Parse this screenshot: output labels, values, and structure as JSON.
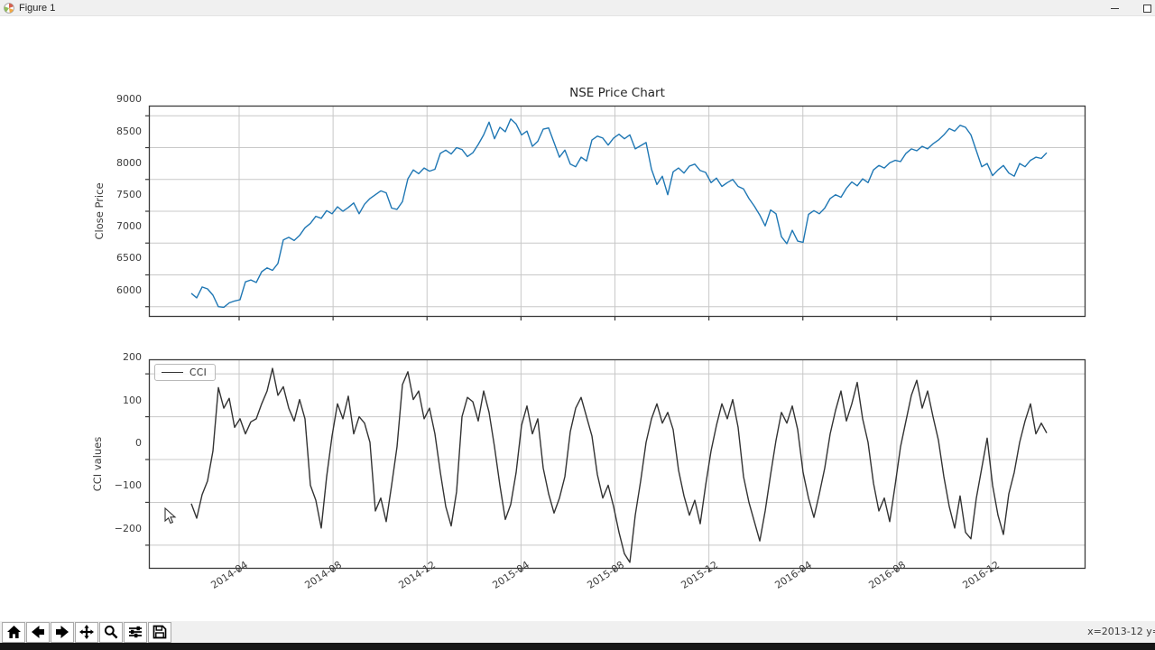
{
  "window": {
    "title": "Figure 1",
    "minimize_label": "Minimize",
    "maximize_label": "Maximize"
  },
  "toolbar": {
    "buttons": [
      {
        "name": "home",
        "tooltip": "Home"
      },
      {
        "name": "back",
        "tooltip": "Back"
      },
      {
        "name": "forward",
        "tooltip": "Forward"
      },
      {
        "name": "pan",
        "tooltip": "Pan"
      },
      {
        "name": "zoom",
        "tooltip": "Zoom"
      },
      {
        "name": "configure-subplots",
        "tooltip": "Configure subplots"
      },
      {
        "name": "save",
        "tooltip": "Save"
      }
    ],
    "status": "x=2013-12 y="
  },
  "chart_data": [
    {
      "type": "line",
      "title": "NSE Price Chart",
      "xlabel": "",
      "ylabel": "Close Price",
      "x_start": "2013-12",
      "x_end": "2017-01",
      "x_step": "weekly-approx",
      "x_tick_labels": [
        "2014-04",
        "2014-08",
        "2014-12",
        "2015-04",
        "2015-08",
        "2015-12",
        "2016-04",
        "2016-08",
        "2016-12"
      ],
      "y_ticks": [
        6000,
        6500,
        7000,
        7500,
        8000,
        8500,
        9000
      ],
      "y_tick_labels": [
        "6000",
        "6500",
        "7000",
        "7500",
        "8000",
        "8500",
        "9000"
      ],
      "ylim": [
        5840,
        9160
      ],
      "grid": true,
      "legend": null,
      "series": [
        {
          "name": "Close",
          "color": "#1f77b4",
          "values": [
            6210,
            6140,
            6310,
            6280,
            6180,
            6000,
            5990,
            6060,
            6090,
            6110,
            6390,
            6420,
            6380,
            6550,
            6610,
            6570,
            6680,
            7050,
            7090,
            7040,
            7120,
            7240,
            7310,
            7420,
            7390,
            7510,
            7460,
            7570,
            7500,
            7560,
            7630,
            7460,
            7610,
            7700,
            7760,
            7820,
            7790,
            7550,
            7530,
            7650,
            8010,
            8150,
            8090,
            8180,
            8130,
            8160,
            8410,
            8460,
            8400,
            8500,
            8470,
            8360,
            8420,
            8550,
            8700,
            8900,
            8640,
            8820,
            8750,
            8950,
            8870,
            8700,
            8760,
            8520,
            8600,
            8790,
            8810,
            8580,
            8350,
            8460,
            8240,
            8200,
            8350,
            8290,
            8620,
            8680,
            8650,
            8540,
            8650,
            8710,
            8640,
            8700,
            8480,
            8530,
            8580,
            8160,
            7920,
            8050,
            7760,
            8120,
            8180,
            8100,
            8210,
            8240,
            8140,
            8110,
            7950,
            8020,
            7890,
            7950,
            8000,
            7890,
            7850,
            7700,
            7580,
            7440,
            7270,
            7520,
            7460,
            7100,
            6990,
            7200,
            7030,
            7010,
            7450,
            7510,
            7460,
            7550,
            7700,
            7760,
            7720,
            7860,
            7960,
            7900,
            8010,
            7950,
            8150,
            8220,
            8180,
            8260,
            8300,
            8280,
            8410,
            8480,
            8450,
            8520,
            8480,
            8560,
            8620,
            8700,
            8800,
            8760,
            8850,
            8820,
            8700,
            8450,
            8200,
            8250,
            8060,
            8150,
            8220,
            8100,
            8050,
            8250,
            8200,
            8300,
            8350,
            8330,
            8420
          ]
        }
      ]
    },
    {
      "type": "line",
      "title": "",
      "xlabel": "",
      "ylabel": "CCI values",
      "x_start": "2013-12",
      "x_end": "2017-01",
      "x_step": "weekly-approx",
      "x_tick_labels": [
        "2014-04",
        "2014-08",
        "2014-12",
        "2015-04",
        "2015-08",
        "2015-12",
        "2016-04",
        "2016-08",
        "2016-12"
      ],
      "y_ticks": [
        -200,
        -100,
        0,
        100,
        200
      ],
      "y_tick_labels": [
        "−200",
        "−100",
        "0",
        "100",
        "200"
      ],
      "ylim": [
        -255,
        234
      ],
      "grid": true,
      "legend": {
        "position": "upper left",
        "entries": [
          "CCI"
        ]
      },
      "series": [
        {
          "name": "CCI",
          "color": "#333333",
          "values": [
            -103,
            -137,
            -82,
            -50,
            20,
            168,
            120,
            143,
            75,
            95,
            60,
            88,
            95,
            130,
            160,
            213,
            150,
            170,
            120,
            90,
            140,
            95,
            -60,
            -95,
            -160,
            -40,
            55,
            130,
            95,
            148,
            60,
            100,
            85,
            40,
            -120,
            -90,
            -145,
            -60,
            30,
            175,
            205,
            140,
            160,
            95,
            120,
            60,
            -30,
            -110,
            -155,
            -75,
            100,
            145,
            135,
            90,
            160,
            110,
            30,
            -60,
            -140,
            -105,
            -30,
            80,
            125,
            60,
            95,
            -20,
            -80,
            -125,
            -90,
            -40,
            65,
            120,
            145,
            100,
            55,
            -35,
            -90,
            -60,
            -110,
            -170,
            -220,
            -240,
            -130,
            -50,
            40,
            95,
            130,
            85,
            110,
            70,
            -25,
            -85,
            -130,
            -95,
            -150,
            -60,
            20,
            80,
            130,
            95,
            140,
            75,
            -40,
            -100,
            -145,
            -190,
            -120,
            -35,
            45,
            110,
            85,
            125,
            70,
            -30,
            -90,
            -135,
            -80,
            -20,
            60,
            115,
            160,
            90,
            130,
            180,
            95,
            40,
            -55,
            -120,
            -90,
            -145,
            -60,
            30,
            90,
            150,
            185,
            120,
            160,
            100,
            45,
            -40,
            -110,
            -160,
            -85,
            -170,
            -185,
            -90,
            -20,
            50,
            -60,
            -130,
            -175,
            -80,
            -30,
            40,
            90,
            130,
            60,
            85,
            62
          ]
        }
      ]
    }
  ]
}
